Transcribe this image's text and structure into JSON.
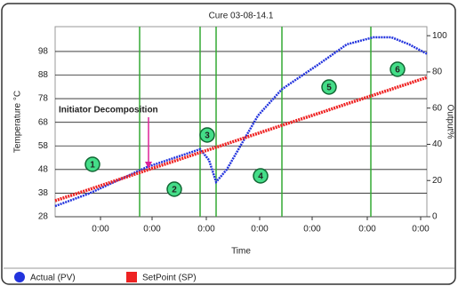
{
  "chart_data": {
    "type": "line",
    "title": "Cure 03-08-14.1",
    "x_label": "Time",
    "y_label": "Temperature °C",
    "y2_label": "Output%",
    "x": [
      0,
      38,
      103,
      163,
      173,
      181,
      193,
      228,
      255,
      298,
      328,
      358,
      378,
      398,
      418
    ],
    "xlim": [
      0,
      418
    ],
    "xticks": [
      {
        "value": 51,
        "label": "0:00"
      },
      {
        "value": 109,
        "label": "0:00"
      },
      {
        "value": 170,
        "label": "0:00"
      },
      {
        "value": 230,
        "label": "0:00"
      },
      {
        "value": 289,
        "label": "0:00"
      },
      {
        "value": 351,
        "label": "0:00"
      },
      {
        "value": 411,
        "label": "0:00"
      }
    ],
    "ylim": [
      28,
      108.5
    ],
    "yticks": [
      28,
      38,
      48,
      58,
      68,
      78,
      88,
      98
    ],
    "y2lim": [
      0,
      105
    ],
    "y2ticks": [
      0,
      20,
      40,
      60,
      80,
      100
    ],
    "grid": true,
    "series": [
      {
        "name": "Actual (PV)",
        "color": "#2233dd",
        "values": [
          32.5,
          37.8,
          49,
          56.6,
          52,
          42.7,
          48,
          70.8,
          82,
          93,
          101,
          104,
          104,
          101,
          97
        ]
      },
      {
        "name": "SetPoint (SP)",
        "color": "#ee2222",
        "values": [
          34.8,
          39.5,
          47.7,
          55.2,
          56.4,
          57.4,
          58.9,
          63.3,
          66.7,
          72.0,
          75.8,
          79.5,
          82.0,
          84.5,
          87.0
        ]
      }
    ],
    "vlines": [
      95,
      163,
      181,
      255,
      355
    ],
    "vline_color": "#33aa33",
    "annotation": "Initiator Decomposition",
    "annotation_color": "#dd2299",
    "phase_labels": [
      "1",
      "2",
      "3",
      "4",
      "5",
      "6"
    ]
  }
}
